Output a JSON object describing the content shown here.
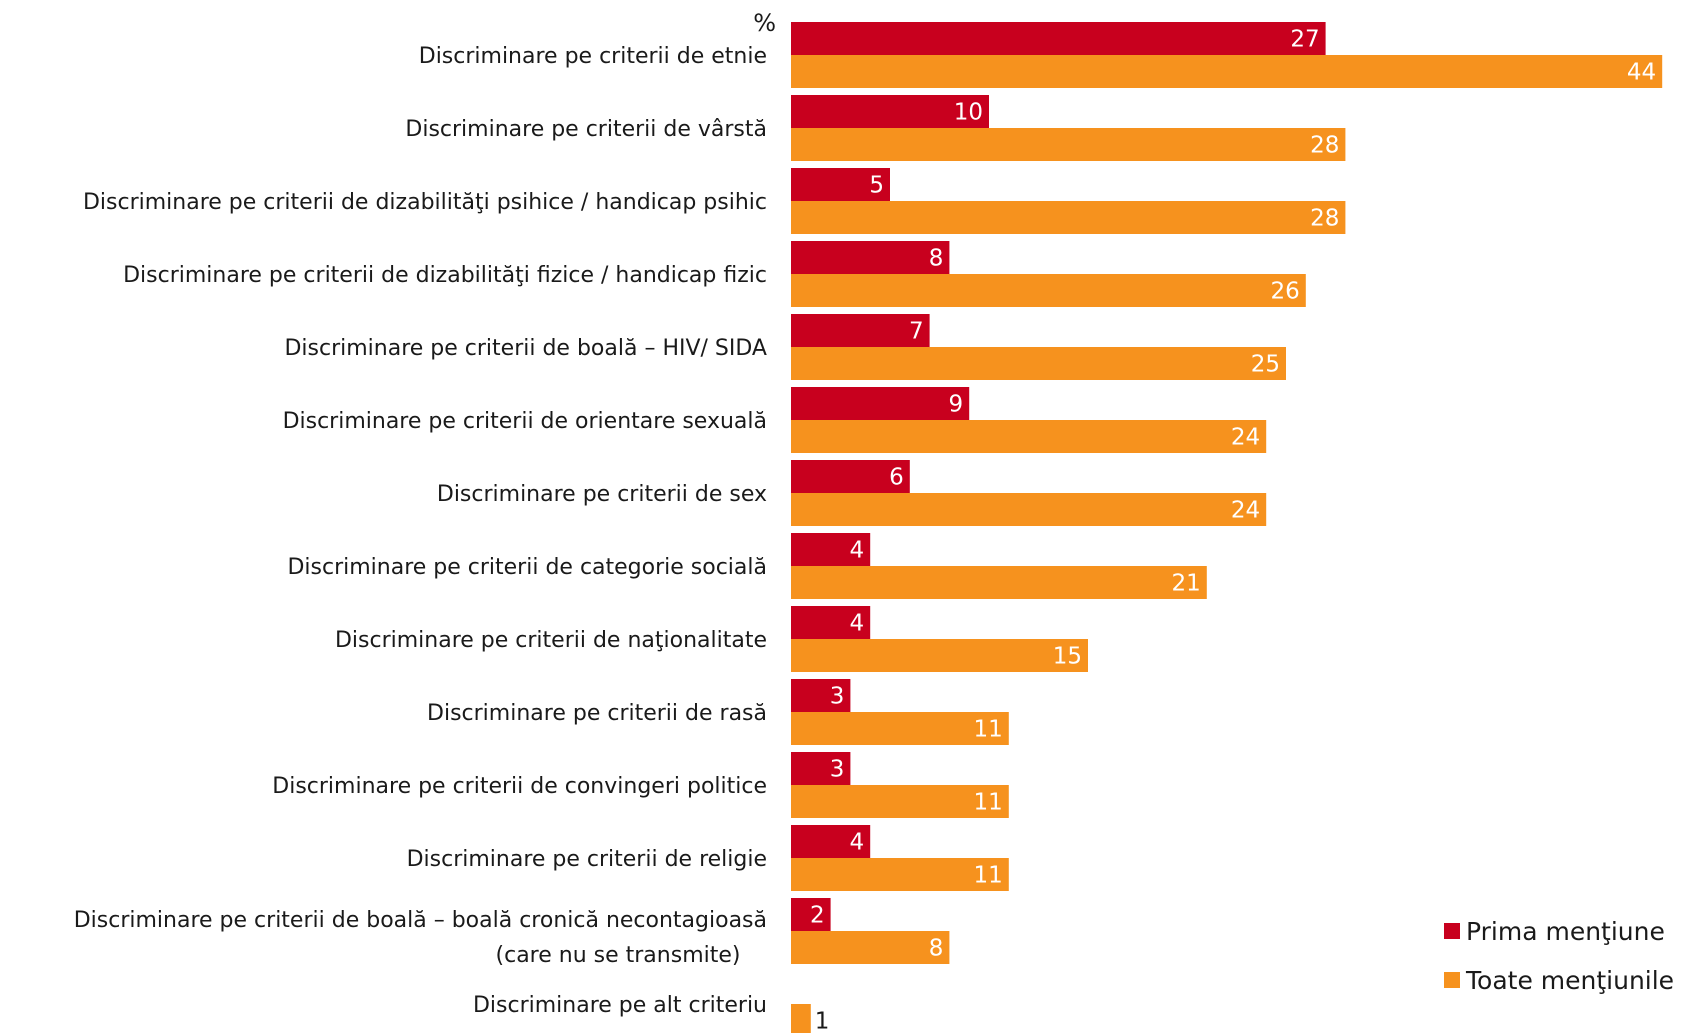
{
  "chart_data": {
    "type": "bar",
    "orientation": "horizontal",
    "unit": "%",
    "categories": [
      [
        "Discriminare pe criterii de etnie"
      ],
      [
        "Discriminare pe criterii de vârstă"
      ],
      [
        "Discriminare pe criterii de dizabilităţi psihice / handicap psihic"
      ],
      [
        "Discriminare pe criterii de dizabilităţi fizice / handicap fizic"
      ],
      [
        "Discriminare pe criterii de boală – HIV/ SIDA"
      ],
      [
        "Discriminare pe criterii de orientare sexuală"
      ],
      [
        "Discriminare pe criterii de sex"
      ],
      [
        "Discriminare pe criterii de categorie socială"
      ],
      [
        "Discriminare pe criterii de naţionalitate"
      ],
      [
        "Discriminare pe criterii de rasă"
      ],
      [
        "Discriminare pe criterii de convingeri politice"
      ],
      [
        "Discriminare pe criterii de religie"
      ],
      [
        "Discriminare pe criterii de boală – boală cronică necontagioasă",
        "(care nu se transmite)"
      ],
      [
        "Discriminare pe alt criteriu"
      ]
    ],
    "series": [
      {
        "name": "Prima menţiune",
        "color": "#C8001E",
        "values": [
          27,
          10,
          5,
          8,
          7,
          9,
          6,
          4,
          4,
          3,
          3,
          4,
          2,
          null
        ],
        "labels": [
          "27",
          "10",
          "5",
          "8",
          "7",
          "9",
          "6",
          "4",
          "4",
          "3",
          "3",
          "4",
          "2",
          ""
        ]
      },
      {
        "name": "Toate menţiunile",
        "color": "#F6921E",
        "values": [
          44,
          28,
          28,
          26,
          25,
          24,
          24,
          21,
          15,
          11,
          11,
          11,
          8,
          1
        ],
        "labels": [
          "44",
          "28",
          "28",
          "26",
          "25",
          "24",
          "24",
          "21",
          "15",
          "11",
          "11",
          "11",
          "8",
          "1"
        ]
      }
    ],
    "legend_position": "bottom-right",
    "grid": false
  }
}
